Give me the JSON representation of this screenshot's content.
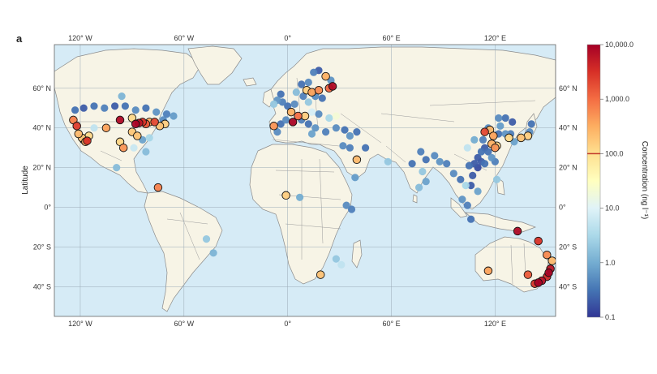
{
  "panel_label": "a",
  "y_axis_label": "Latitude",
  "colorbar": {
    "label": "Concentration (ng l⁻¹)",
    "ticks": [
      "10,000.0",
      "1,000.0",
      "100.0",
      "10.0",
      "1.0",
      "0.1"
    ],
    "scale": "log",
    "range": [
      0.1,
      10000
    ],
    "threshold_line": 100,
    "threshold_color": "#c0392b",
    "stops": [
      "#313695",
      "#4575b4",
      "#74add1",
      "#abd9e9",
      "#e0f3f8",
      "#ffffbf",
      "#fee090",
      "#fdae61",
      "#f46d43",
      "#d73027",
      "#a50026"
    ]
  },
  "map": {
    "lon_ticks": [
      "120° W",
      "60° W",
      "0°",
      "60° E",
      "120° E"
    ],
    "lat_ticks": [
      "60° N",
      "40° N",
      "20° N",
      "0°",
      "20° S",
      "40° S"
    ],
    "ocean_color": "#d6ebf6",
    "land_color": "#f7f4e6",
    "border_color": "#8a8a8a"
  },
  "chart_data": {
    "type": "scatter",
    "title": "",
    "xlabel": "",
    "ylabel": "Latitude",
    "xlim": [
      -135,
      155
    ],
    "ylim": [
      -55,
      82
    ],
    "color_by": "concentration",
    "points": [
      {
        "lon": -123,
        "lat": 49,
        "c": 0.3
      },
      {
        "lon": -118,
        "lat": 50,
        "c": 0.2
      },
      {
        "lon": -112,
        "lat": 51,
        "c": 0.3
      },
      {
        "lon": -106,
        "lat": 50,
        "c": 0.4
      },
      {
        "lon": -100,
        "lat": 51,
        "c": 0.2
      },
      {
        "lon": -94,
        "lat": 51,
        "c": 0.3
      },
      {
        "lon": -88,
        "lat": 49,
        "c": 0.5
      },
      {
        "lon": -82,
        "lat": 50,
        "c": 0.3
      },
      {
        "lon": -76,
        "lat": 48,
        "c": 0.6
      },
      {
        "lon": -70,
        "lat": 47,
        "c": 0.4
      },
      {
        "lon": -66,
        "lat": 46,
        "c": 0.7
      },
      {
        "lon": -96,
        "lat": 56,
        "c": 1.2
      },
      {
        "lon": -124,
        "lat": 44,
        "c": 700
      },
      {
        "lon": -122,
        "lat": 41,
        "c": 2500
      },
      {
        "lon": -121,
        "lat": 37,
        "c": 250
      },
      {
        "lon": -119,
        "lat": 35,
        "c": 180
      },
      {
        "lon": -117,
        "lat": 33,
        "c": 350
      },
      {
        "lon": -116,
        "lat": 33.5,
        "c": 3000
      },
      {
        "lon": -118,
        "lat": 34,
        "c": 150
      },
      {
        "lon": -115,
        "lat": 36,
        "c": 120
      },
      {
        "lon": -112,
        "lat": 40,
        "c": 5
      },
      {
        "lon": -105,
        "lat": 40,
        "c": 400
      },
      {
        "lon": -97,
        "lat": 44,
        "c": 8000
      },
      {
        "lon": -90,
        "lat": 45,
        "c": 120
      },
      {
        "lon": -88,
        "lat": 42,
        "c": 9000
      },
      {
        "lon": -86,
        "lat": 42.5,
        "c": 6000
      },
      {
        "lon": -84,
        "lat": 43,
        "c": 3000
      },
      {
        "lon": -82,
        "lat": 42,
        "c": 1500
      },
      {
        "lon": -80,
        "lat": 43,
        "c": 300
      },
      {
        "lon": -77,
        "lat": 43,
        "c": 2000
      },
      {
        "lon": -74,
        "lat": 41,
        "c": 200
      },
      {
        "lon": -71,
        "lat": 42,
        "c": 150
      },
      {
        "lon": -72,
        "lat": 44,
        "c": 0.5
      },
      {
        "lon": -90,
        "lat": 38,
        "c": 180
      },
      {
        "lon": -87,
        "lat": 36,
        "c": 200
      },
      {
        "lon": -84,
        "lat": 34,
        "c": 0.8
      },
      {
        "lon": -80,
        "lat": 35,
        "c": 3
      },
      {
        "lon": -97,
        "lat": 33,
        "c": 130
      },
      {
        "lon": -95,
        "lat": 30,
        "c": 500
      },
      {
        "lon": -89,
        "lat": 30,
        "c": 6
      },
      {
        "lon": -82,
        "lat": 28,
        "c": 1.5
      },
      {
        "lon": -99,
        "lat": 20,
        "c": 1.5
      },
      {
        "lon": -75,
        "lat": 10,
        "c": 700
      },
      {
        "lon": -47,
        "lat": -16,
        "c": 2
      },
      {
        "lon": -43,
        "lat": -23,
        "c": 1.2
      },
      {
        "lon": 8,
        "lat": 62,
        "c": 0.3
      },
      {
        "lon": 12,
        "lat": 63,
        "c": 0.5
      },
      {
        "lon": 15,
        "lat": 68,
        "c": 0.4
      },
      {
        "lon": 18,
        "lat": 69,
        "c": 0.2
      },
      {
        "lon": 22,
        "lat": 66,
        "c": 300
      },
      {
        "lon": 25,
        "lat": 64,
        "c": 0.6
      },
      {
        "lon": 26,
        "lat": 61,
        "c": 8000
      },
      {
        "lon": 24,
        "lat": 60,
        "c": 1200
      },
      {
        "lon": 18,
        "lat": 59,
        "c": 600
      },
      {
        "lon": 14,
        "lat": 58,
        "c": 400
      },
      {
        "lon": 11,
        "lat": 59,
        "c": 150
      },
      {
        "lon": 16,
        "lat": 56,
        "c": 0.5
      },
      {
        "lon": 20,
        "lat": 55,
        "c": 0.3
      },
      {
        "lon": 5,
        "lat": 58,
        "c": 1.5
      },
      {
        "lon": 9,
        "lat": 56,
        "c": 0.4
      },
      {
        "lon": 12,
        "lat": 53,
        "c": 2
      },
      {
        "lon": 4,
        "lat": 52,
        "c": 0.5
      },
      {
        "lon": 0,
        "lat": 51,
        "c": 0.3
      },
      {
        "lon": -3,
        "lat": 53,
        "c": 0.4
      },
      {
        "lon": -6,
        "lat": 54,
        "c": 0.6
      },
      {
        "lon": -4,
        "lat": 57,
        "c": 0.3
      },
      {
        "lon": -8,
        "lat": 52,
        "c": 2
      },
      {
        "lon": 2,
        "lat": 48,
        "c": 300
      },
      {
        "lon": 6,
        "lat": 46,
        "c": 1000
      },
      {
        "lon": 10,
        "lat": 46,
        "c": 150
      },
      {
        "lon": 14,
        "lat": 48,
        "c": 8
      },
      {
        "lon": 18,
        "lat": 47,
        "c": 0.5
      },
      {
        "lon": 24,
        "lat": 45,
        "c": 3
      },
      {
        "lon": 28,
        "lat": 46,
        "c": 20
      },
      {
        "lon": -1,
        "lat": 44,
        "c": 0.5
      },
      {
        "lon": -4,
        "lat": 42,
        "c": 0.3
      },
      {
        "lon": -8,
        "lat": 41,
        "c": 500
      },
      {
        "lon": -6,
        "lat": 38,
        "c": 0.5
      },
      {
        "lon": 3,
        "lat": 43,
        "c": 9000
      },
      {
        "lon": 8,
        "lat": 44,
        "c": 0.4
      },
      {
        "lon": 12,
        "lat": 42,
        "c": 0.3
      },
      {
        "lon": 16,
        "lat": 40,
        "c": 0.6
      },
      {
        "lon": 22,
        "lat": 38,
        "c": 0.4
      },
      {
        "lon": 28,
        "lat": 40,
        "c": 0.5
      },
      {
        "lon": 33,
        "lat": 39,
        "c": 0.3
      },
      {
        "lon": 36,
        "lat": 36,
        "c": 0.6
      },
      {
        "lon": 40,
        "lat": 38,
        "c": 0.3
      },
      {
        "lon": 14,
        "lat": 37,
        "c": 0.8
      },
      {
        "lon": 32,
        "lat": 31,
        "c": 0.5
      },
      {
        "lon": 45,
        "lat": 30,
        "c": 0.3
      },
      {
        "lon": 40,
        "lat": 24,
        "c": 250
      },
      {
        "lon": 39,
        "lat": 15,
        "c": 0.7
      },
      {
        "lon": 36,
        "lat": 30,
        "c": 0.4
      },
      {
        "lon": 58,
        "lat": 23,
        "c": 2
      },
      {
        "lon": -1,
        "lat": 6,
        "c": 150
      },
      {
        "lon": 7,
        "lat": 5,
        "c": 1
      },
      {
        "lon": 34,
        "lat": 1,
        "c": 0.5
      },
      {
        "lon": 37,
        "lat": -1,
        "c": 0.4
      },
      {
        "lon": 28,
        "lat": -26,
        "c": 2
      },
      {
        "lon": 19,
        "lat": -34,
        "c": 200
      },
      {
        "lon": 31,
        "lat": -29,
        "c": 5
      },
      {
        "lon": 77,
        "lat": 28,
        "c": 0.4
      },
      {
        "lon": 80,
        "lat": 24,
        "c": 0.3
      },
      {
        "lon": 85,
        "lat": 26,
        "c": 0.5
      },
      {
        "lon": 88,
        "lat": 23,
        "c": 0.6
      },
      {
        "lon": 72,
        "lat": 22,
        "c": 0.3
      },
      {
        "lon": 78,
        "lat": 18,
        "c": 2
      },
      {
        "lon": 80,
        "lat": 13,
        "c": 0.8
      },
      {
        "lon": 76,
        "lat": 10,
        "c": 1.5
      },
      {
        "lon": 92,
        "lat": 22,
        "c": 0.4
      },
      {
        "lon": 96,
        "lat": 17,
        "c": 0.5
      },
      {
        "lon": 100,
        "lat": 14,
        "c": 0.3
      },
      {
        "lon": 103,
        "lat": 11,
        "c": 3
      },
      {
        "lon": 106,
        "lat": 11,
        "c": 0.2
      },
      {
        "lon": 101,
        "lat": 4,
        "c": 0.6
      },
      {
        "lon": 104,
        "lat": 1,
        "c": 0.4
      },
      {
        "lon": 106,
        "lat": -6,
        "c": 0.3
      },
      {
        "lon": 110,
        "lat": 8,
        "c": 0.8
      },
      {
        "lon": 121,
        "lat": 14,
        "c": 2
      },
      {
        "lon": 105,
        "lat": 21,
        "c": 0.3
      },
      {
        "lon": 107,
        "lat": 16,
        "c": 0.2
      },
      {
        "lon": 108,
        "lat": 22,
        "c": 0.2
      },
      {
        "lon": 110,
        "lat": 20,
        "c": 0.15
      },
      {
        "lon": 112,
        "lat": 23,
        "c": 0.2
      },
      {
        "lon": 114,
        "lat": 22,
        "c": 0.3
      },
      {
        "lon": 110,
        "lat": 25,
        "c": 0.2
      },
      {
        "lon": 112,
        "lat": 28,
        "c": 0.3
      },
      {
        "lon": 114,
        "lat": 30,
        "c": 0.2
      },
      {
        "lon": 113,
        "lat": 34,
        "c": 0.4
      },
      {
        "lon": 116,
        "lat": 28,
        "c": 0.3
      },
      {
        "lon": 118,
        "lat": 32,
        "c": 300
      },
      {
        "lon": 120,
        "lat": 30,
        "c": 500
      },
      {
        "lon": 121,
        "lat": 31,
        "c": 150
      },
      {
        "lon": 117,
        "lat": 39,
        "c": 250
      },
      {
        "lon": 116,
        "lat": 40,
        "c": 0.5
      },
      {
        "lon": 114,
        "lat": 38,
        "c": 2000
      },
      {
        "lon": 119,
        "lat": 36,
        "c": 400
      },
      {
        "lon": 122,
        "lat": 37,
        "c": 0.3
      },
      {
        "lon": 118,
        "lat": 25,
        "c": 0.6
      },
      {
        "lon": 120,
        "lat": 23,
        "c": 0.4
      },
      {
        "lon": 104,
        "lat": 30,
        "c": 5
      },
      {
        "lon": 108,
        "lat": 34,
        "c": 1
      },
      {
        "lon": 122,
        "lat": 45,
        "c": 0.5
      },
      {
        "lon": 126,
        "lat": 45,
        "c": 0.3
      },
      {
        "lon": 123,
        "lat": 41,
        "c": 0.7
      },
      {
        "lon": 126,
        "lat": 37,
        "c": 0.6
      },
      {
        "lon": 128,
        "lat": 35,
        "c": 120
      },
      {
        "lon": 129,
        "lat": 37,
        "c": 0.4
      },
      {
        "lon": 131,
        "lat": 33,
        "c": 0.8
      },
      {
        "lon": 135,
        "lat": 35,
        "c": 200
      },
      {
        "lon": 139,
        "lat": 36,
        "c": 150
      },
      {
        "lon": 140,
        "lat": 38,
        "c": 0.5
      },
      {
        "lon": 141,
        "lat": 42,
        "c": 0.3
      },
      {
        "lon": 130,
        "lat": 43,
        "c": 0.2
      },
      {
        "lon": 133,
        "lat": -12,
        "c": 8000
      },
      {
        "lon": 145,
        "lat": -17,
        "c": 3000
      },
      {
        "lon": 150,
        "lat": -24,
        "c": 600
      },
      {
        "lon": 153,
        "lat": -27,
        "c": 250
      },
      {
        "lon": 152,
        "lat": -31,
        "c": 6000
      },
      {
        "lon": 151,
        "lat": -33,
        "c": 9000
      },
      {
        "lon": 150,
        "lat": -35,
        "c": 4000
      },
      {
        "lon": 147,
        "lat": -37,
        "c": 7000
      },
      {
        "lon": 145,
        "lat": -38,
        "c": 9500
      },
      {
        "lon": 139,
        "lat": -34,
        "c": 1500
      },
      {
        "lon": 116,
        "lat": -32,
        "c": 400
      },
      {
        "lon": 143,
        "lat": -38.5,
        "c": 3000
      }
    ]
  }
}
